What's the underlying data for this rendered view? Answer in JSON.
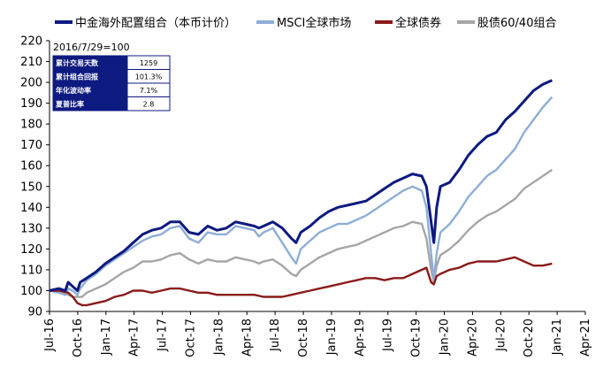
{
  "chart_data": {
    "type": "line",
    "title": "",
    "xlabel": "",
    "ylabel": "",
    "ylim": [
      90,
      220
    ],
    "yticks": [
      90,
      100,
      110,
      120,
      130,
      140,
      150,
      160,
      170,
      180,
      190,
      200,
      210,
      220
    ],
    "grid": false,
    "legend_position": "top",
    "base_note": "2016/7/29=100",
    "x_tick_labels": [
      "Jul-16",
      "Oct-16",
      "Jan-17",
      "Apr-17",
      "Jul-17",
      "Oct-17",
      "Jan-18",
      "Apr-18",
      "Jul-18",
      "Oct-18",
      "Jan-19",
      "Apr-19",
      "Jul-19",
      "Oct-19",
      "Jan-20",
      "Apr-20",
      "Jul-20",
      "Oct-20",
      "Jan-21",
      "Apr-21"
    ],
    "stats_table": [
      {
        "label": "累计交易天数",
        "value": "1259"
      },
      {
        "label": "累计组合回报",
        "value": "101.3%"
      },
      {
        "label": "年化波动率",
        "value": "7.1%"
      },
      {
        "label": "夏普比率",
        "value": "2.8"
      }
    ],
    "series": [
      {
        "name": "中金海外配置组合（本币计价）",
        "color": "#0d1a80",
        "points": [
          [
            0,
            100
          ],
          [
            1,
            101
          ],
          [
            1.7,
            100
          ],
          [
            2,
            104
          ],
          [
            2.5,
            102
          ],
          [
            3,
            100
          ],
          [
            3.3,
            104
          ],
          [
            4,
            106
          ],
          [
            5,
            109
          ],
          [
            6,
            113
          ],
          [
            7,
            116
          ],
          [
            8,
            119
          ],
          [
            9,
            123
          ],
          [
            10,
            127
          ],
          [
            11,
            129
          ],
          [
            12,
            130
          ],
          [
            13,
            133
          ],
          [
            14,
            133
          ],
          [
            15,
            128
          ],
          [
            16,
            127
          ],
          [
            17,
            131
          ],
          [
            18,
            129
          ],
          [
            19,
            130
          ],
          [
            20,
            133
          ],
          [
            21,
            132
          ],
          [
            22,
            131
          ],
          [
            22.5,
            130
          ],
          [
            23,
            131
          ],
          [
            24,
            133
          ],
          [
            25,
            130
          ],
          [
            26,
            125
          ],
          [
            26.5,
            123
          ],
          [
            27,
            128
          ],
          [
            28,
            131
          ],
          [
            29,
            135
          ],
          [
            30,
            138
          ],
          [
            31,
            140
          ],
          [
            32,
            141
          ],
          [
            33,
            142
          ],
          [
            34,
            143
          ],
          [
            35,
            146
          ],
          [
            36,
            149
          ],
          [
            37,
            152
          ],
          [
            38,
            154
          ],
          [
            39,
            156
          ],
          [
            40,
            155
          ],
          [
            40.5,
            150
          ],
          [
            41,
            133
          ],
          [
            41.3,
            123
          ],
          [
            41.6,
            140
          ],
          [
            42,
            150
          ],
          [
            43,
            152
          ],
          [
            44,
            158
          ],
          [
            45,
            165
          ],
          [
            46,
            170
          ],
          [
            47,
            174
          ],
          [
            48,
            176
          ],
          [
            49,
            182
          ],
          [
            50,
            186
          ],
          [
            51,
            191
          ],
          [
            52,
            196
          ],
          [
            53,
            199
          ],
          [
            54,
            201
          ]
        ]
      },
      {
        "name": "MSCI全球市场",
        "color": "#8eaed6",
        "points": [
          [
            0,
            100
          ],
          [
            1,
            99
          ],
          [
            1.7,
            98
          ],
          [
            2,
            101
          ],
          [
            2.5,
            100
          ],
          [
            3,
            98
          ],
          [
            3.3,
            101
          ],
          [
            4,
            105
          ],
          [
            5,
            108
          ],
          [
            6,
            112
          ],
          [
            7,
            115
          ],
          [
            8,
            118
          ],
          [
            9,
            121
          ],
          [
            10,
            124
          ],
          [
            11,
            126
          ],
          [
            12,
            127
          ],
          [
            13,
            130
          ],
          [
            14,
            131
          ],
          [
            15,
            125
          ],
          [
            16,
            123
          ],
          [
            17,
            128
          ],
          [
            18,
            127
          ],
          [
            19,
            127
          ],
          [
            20,
            131
          ],
          [
            21,
            130
          ],
          [
            22,
            129
          ],
          [
            22.5,
            126
          ],
          [
            23,
            128
          ],
          [
            24,
            130
          ],
          [
            25,
            123
          ],
          [
            26,
            116
          ],
          [
            26.5,
            113
          ],
          [
            27,
            120
          ],
          [
            28,
            124
          ],
          [
            29,
            128
          ],
          [
            30,
            130
          ],
          [
            31,
            132
          ],
          [
            32,
            132
          ],
          [
            33,
            134
          ],
          [
            34,
            136
          ],
          [
            35,
            139
          ],
          [
            36,
            142
          ],
          [
            37,
            145
          ],
          [
            38,
            148
          ],
          [
            39,
            150
          ],
          [
            40,
            148
          ],
          [
            40.5,
            140
          ],
          [
            41,
            118
          ],
          [
            41.3,
            105
          ],
          [
            41.6,
            118
          ],
          [
            42,
            128
          ],
          [
            43,
            132
          ],
          [
            44,
            138
          ],
          [
            45,
            145
          ],
          [
            46,
            150
          ],
          [
            47,
            155
          ],
          [
            48,
            158
          ],
          [
            49,
            163
          ],
          [
            50,
            168
          ],
          [
            51,
            176
          ],
          [
            52,
            182
          ],
          [
            53,
            188
          ],
          [
            54,
            193
          ]
        ]
      },
      {
        "name": "全球债券",
        "color": "#8b1a1a",
        "points": [
          [
            0,
            100
          ],
          [
            1,
            100
          ],
          [
            2,
            99
          ],
          [
            2.5,
            97
          ],
          [
            3,
            94
          ],
          [
            3.5,
            93
          ],
          [
            4,
            93
          ],
          [
            5,
            94
          ],
          [
            6,
            95
          ],
          [
            7,
            97
          ],
          [
            8,
            98
          ],
          [
            9,
            100
          ],
          [
            10,
            100
          ],
          [
            11,
            99
          ],
          [
            12,
            100
          ],
          [
            13,
            101
          ],
          [
            14,
            101
          ],
          [
            15,
            100
          ],
          [
            16,
            99
          ],
          [
            17,
            99
          ],
          [
            18,
            98
          ],
          [
            19,
            98
          ],
          [
            20,
            98
          ],
          [
            21,
            98
          ],
          [
            22,
            98
          ],
          [
            23,
            97
          ],
          [
            24,
            97
          ],
          [
            25,
            97
          ],
          [
            26,
            98
          ],
          [
            27,
            99
          ],
          [
            28,
            100
          ],
          [
            29,
            101
          ],
          [
            30,
            102
          ],
          [
            31,
            103
          ],
          [
            32,
            104
          ],
          [
            33,
            105
          ],
          [
            34,
            106
          ],
          [
            35,
            106
          ],
          [
            36,
            105
          ],
          [
            37,
            106
          ],
          [
            38,
            106
          ],
          [
            39,
            108
          ],
          [
            40,
            110
          ],
          [
            40.5,
            111
          ],
          [
            41,
            104
          ],
          [
            41.3,
            103
          ],
          [
            41.6,
            107
          ],
          [
            42,
            108
          ],
          [
            43,
            110
          ],
          [
            44,
            111
          ],
          [
            45,
            113
          ],
          [
            46,
            114
          ],
          [
            47,
            114
          ],
          [
            48,
            114
          ],
          [
            49,
            115
          ],
          [
            50,
            116
          ],
          [
            51,
            114
          ],
          [
            52,
            112
          ],
          [
            53,
            112
          ],
          [
            54,
            113
          ]
        ]
      },
      {
        "name": "股债60/40组合",
        "color": "#a6a6a6",
        "points": [
          [
            0,
            100
          ],
          [
            1,
            100
          ],
          [
            2,
            98
          ],
          [
            2.5,
            97
          ],
          [
            3,
            97
          ],
          [
            3.5,
            97
          ],
          [
            4,
            99
          ],
          [
            5,
            101
          ],
          [
            6,
            103
          ],
          [
            7,
            106
          ],
          [
            8,
            109
          ],
          [
            9,
            111
          ],
          [
            10,
            114
          ],
          [
            11,
            114
          ],
          [
            12,
            115
          ],
          [
            13,
            117
          ],
          [
            14,
            118
          ],
          [
            15,
            115
          ],
          [
            16,
            113
          ],
          [
            17,
            115
          ],
          [
            18,
            114
          ],
          [
            19,
            114
          ],
          [
            20,
            116
          ],
          [
            21,
            115
          ],
          [
            22,
            114
          ],
          [
            22.5,
            113
          ],
          [
            23,
            114
          ],
          [
            24,
            115
          ],
          [
            25,
            112
          ],
          [
            26,
            108
          ],
          [
            26.5,
            107
          ],
          [
            27,
            110
          ],
          [
            28,
            113
          ],
          [
            29,
            116
          ],
          [
            30,
            118
          ],
          [
            31,
            120
          ],
          [
            32,
            121
          ],
          [
            33,
            122
          ],
          [
            34,
            124
          ],
          [
            35,
            126
          ],
          [
            36,
            128
          ],
          [
            37,
            130
          ],
          [
            38,
            131
          ],
          [
            39,
            133
          ],
          [
            40,
            132
          ],
          [
            40.5,
            125
          ],
          [
            41,
            110
          ],
          [
            41.3,
            104
          ],
          [
            41.6,
            112
          ],
          [
            42,
            117
          ],
          [
            43,
            120
          ],
          [
            44,
            124
          ],
          [
            45,
            129
          ],
          [
            46,
            133
          ],
          [
            47,
            136
          ],
          [
            48,
            138
          ],
          [
            49,
            141
          ],
          [
            50,
            144
          ],
          [
            51,
            149
          ],
          [
            52,
            152
          ],
          [
            53,
            155
          ],
          [
            54,
            158
          ]
        ]
      }
    ]
  }
}
